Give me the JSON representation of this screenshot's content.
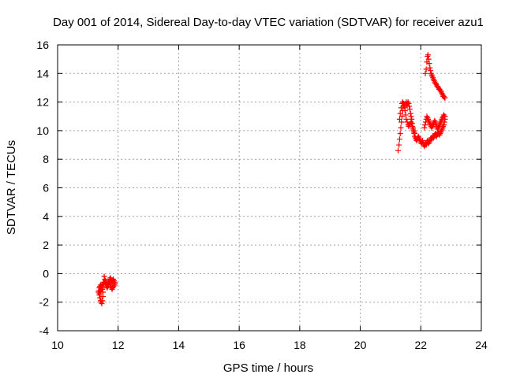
{
  "chart_data": {
    "type": "scatter",
    "title": "Day 001 of 2014, Sidereal Day-to-day VTEC variation (SDTVAR) for receiver azu1",
    "xlabel": "GPS time / hours",
    "ylabel": "SDTVAR / TECUs",
    "xlim": [
      10,
      24
    ],
    "ylim": [
      -4,
      16
    ],
    "xticks": [
      10,
      12,
      14,
      16,
      18,
      20,
      22,
      24
    ],
    "yticks": [
      -4,
      -2,
      0,
      2,
      4,
      6,
      8,
      10,
      12,
      14,
      16
    ],
    "grid": true,
    "marker": "plus",
    "color": "#ff0000",
    "series": [
      {
        "x": [
          11.35,
          11.38,
          11.4,
          11.42,
          11.44,
          11.46,
          11.48,
          11.5,
          11.5,
          11.48,
          11.46,
          11.44,
          11.42,
          11.4,
          11.42,
          11.45,
          11.48,
          11.52,
          11.55,
          11.58,
          11.6,
          11.62,
          11.64,
          11.66,
          11.68,
          11.7,
          11.72,
          11.74,
          11.76,
          11.78,
          11.8,
          11.82,
          11.84,
          11.86,
          11.88,
          11.9,
          11.88,
          11.85,
          11.82,
          11.8,
          11.78,
          11.76,
          11.74,
          11.72,
          11.7,
          11.68,
          11.66,
          11.64,
          11.62,
          11.6,
          11.58,
          11.56,
          11.54,
          11.52,
          11.5,
          11.48,
          11.46,
          11.44,
          11.42,
          11.4,
          11.38,
          11.36,
          11.38,
          11.4
        ],
        "y": [
          -1.3,
          -1.5,
          -1.7,
          -1.9,
          -2.0,
          -2.1,
          -1.9,
          -1.6,
          -1.3,
          -1.1,
          -1.0,
          -0.9,
          -0.8,
          -0.9,
          -1.0,
          -0.9,
          -0.8,
          -0.7,
          -0.6,
          -0.7,
          -0.8,
          -0.9,
          -1.0,
          -0.9,
          -0.8,
          -0.6,
          -0.4,
          -0.3,
          -0.4,
          -0.5,
          -0.6,
          -0.5,
          -0.4,
          -0.5,
          -0.6,
          -0.7,
          -0.8,
          -0.9,
          -1.0,
          -1.1,
          -1.0,
          -0.9,
          -0.8,
          -0.7,
          -0.6,
          -0.6,
          -0.7,
          -0.8,
          -0.7,
          -0.6,
          -0.5,
          -0.4,
          -0.2,
          -0.6,
          -0.8,
          -0.9,
          -1.0,
          -1.1,
          -1.2,
          -1.3,
          -1.4,
          -1.2,
          -1.0,
          -0.9
        ]
      },
      {
        "x": [
          21.25,
          21.28,
          21.3,
          21.32,
          21.34,
          21.36,
          21.38,
          21.4,
          21.42,
          21.44,
          21.46,
          21.48,
          21.5,
          21.52,
          21.54,
          21.56,
          21.58,
          21.6,
          21.62,
          21.64,
          21.66,
          21.68,
          21.7,
          21.72,
          21.74,
          21.76,
          21.78,
          21.8,
          21.82,
          21.84,
          21.86,
          21.88,
          21.9,
          21.92,
          21.94,
          21.96,
          21.98,
          22.0,
          22.02,
          22.04,
          22.06,
          22.08,
          22.1,
          22.12,
          22.14,
          22.16,
          22.18,
          22.2,
          22.22,
          22.24,
          22.26,
          22.28,
          22.3,
          22.32,
          22.34,
          22.36,
          22.38,
          22.4,
          22.42,
          22.44,
          22.46,
          22.48,
          22.5,
          22.52,
          22.54,
          22.56,
          22.58,
          22.6,
          22.62,
          22.64,
          22.66,
          22.68,
          22.7,
          22.72,
          22.74,
          22.76,
          22.78,
          22.8,
          22.8,
          22.78,
          22.76,
          22.74,
          22.72,
          22.7,
          22.68,
          22.66,
          22.64,
          22.62,
          22.6,
          22.58,
          22.56,
          22.54,
          22.52,
          22.5,
          22.48,
          22.46,
          22.44,
          22.42,
          22.4,
          22.38,
          22.36,
          22.34,
          22.32,
          22.3,
          22.28,
          22.26,
          22.24,
          22.22,
          22.2,
          22.18,
          22.16,
          22.14,
          22.12,
          22.15,
          22.18,
          22.2,
          22.22,
          22.24,
          22.26,
          22.28,
          22.3,
          22.32,
          22.34,
          22.36,
          22.38,
          22.4,
          22.42,
          22.44,
          22.46,
          22.48,
          22.5,
          22.52,
          22.54,
          22.56,
          22.58,
          22.6,
          22.62,
          22.64,
          22.66,
          22.68,
          22.7,
          22.72,
          22.74,
          22.76,
          22.78,
          22.8,
          21.3,
          21.32,
          21.35,
          21.38,
          21.4,
          21.42,
          21.45,
          21.48,
          21.5,
          21.52,
          21.55,
          21.58,
          21.6,
          21.62,
          21.65,
          21.68,
          21.7,
          21.72,
          21.75,
          21.78,
          21.8
        ],
        "y": [
          8.6,
          9.0,
          9.4,
          9.8,
          10.2,
          10.6,
          11.0,
          11.4,
          11.7,
          11.9,
          11.8,
          11.6,
          11.9,
          12.0,
          11.8,
          11.9,
          12.0,
          11.9,
          11.7,
          11.5,
          11.2,
          11.0,
          10.8,
          10.5,
          10.2,
          10.0,
          9.8,
          9.6,
          9.5,
          9.4,
          9.3,
          9.4,
          9.5,
          9.6,
          9.5,
          9.4,
          9.3,
          9.2,
          9.1,
          9.2,
          9.3,
          9.1,
          9.0,
          8.9,
          9.0,
          9.1,
          9.0,
          9.2,
          9.3,
          9.2,
          9.1,
          9.2,
          9.3,
          9.4,
          9.5,
          9.4,
          9.5,
          9.6,
          9.5,
          9.6,
          9.7,
          9.8,
          9.7,
          9.6,
          9.7,
          9.8,
          9.9,
          9.8,
          9.7,
          9.8,
          9.9,
          10.0,
          10.1,
          10.2,
          10.3,
          10.4,
          10.6,
          10.8,
          11.0,
          11.0,
          11.1,
          11.0,
          10.9,
          10.8,
          10.7,
          10.6,
          10.5,
          10.4,
          10.3,
          10.2,
          10.1,
          10.2,
          10.3,
          10.5,
          10.6,
          10.7,
          10.6,
          10.5,
          10.4,
          10.3,
          10.2,
          10.3,
          10.4,
          10.5,
          10.6,
          10.7,
          10.8,
          10.9,
          11.0,
          10.8,
          10.6,
          10.4,
          10.2,
          14.0,
          14.3,
          14.8,
          15.2,
          15.3,
          15.0,
          14.7,
          14.4,
          14.2,
          14.0,
          13.9,
          13.8,
          13.7,
          13.6,
          13.5,
          13.4,
          13.3,
          13.3,
          13.2,
          13.1,
          13.1,
          13.0,
          12.9,
          12.9,
          12.8,
          12.8,
          12.7,
          12.6,
          12.5,
          12.4,
          12.4,
          12.3,
          12.3,
          10.8,
          11.2,
          11.6,
          11.9,
          12.0,
          11.9,
          11.7,
          11.4,
          11.1,
          10.8,
          10.6,
          10.4,
          10.3,
          10.4,
          10.5,
          10.6,
          10.5,
          10.3,
          10.1,
          9.9,
          9.8
        ]
      }
    ]
  }
}
